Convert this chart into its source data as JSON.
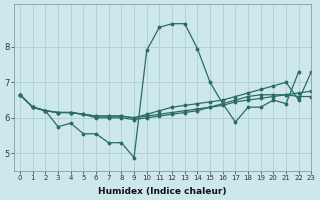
{
  "xlabel": "Humidex (Indice chaleur)",
  "ylabel": "",
  "bg_color": "#cde8ec",
  "grid_color": "#aecdd4",
  "line_color": "#2a6b68",
  "xlim": [
    -0.5,
    23
  ],
  "ylim": [
    4.5,
    9.2
  ],
  "yticks": [
    5,
    6,
    7,
    8
  ],
  "xticks": [
    0,
    1,
    2,
    3,
    4,
    5,
    6,
    7,
    8,
    9,
    10,
    11,
    12,
    13,
    14,
    15,
    16,
    17,
    18,
    19,
    20,
    21,
    22,
    23
  ],
  "series": [
    [
      6.65,
      6.3,
      6.2,
      5.75,
      5.85,
      5.55,
      5.55,
      5.3,
      5.3,
      4.88,
      7.9,
      8.55,
      8.65,
      8.65,
      7.95,
      7.0,
      6.4,
      5.88,
      6.3,
      6.3,
      6.5,
      6.4,
      7.3,
      null
    ],
    [
      6.65,
      6.3,
      6.2,
      6.15,
      6.15,
      6.1,
      6.05,
      6.05,
      6.05,
      6.0,
      6.05,
      6.1,
      6.15,
      6.2,
      6.25,
      6.3,
      6.35,
      6.45,
      6.5,
      6.55,
      6.6,
      6.65,
      6.7,
      6.75
    ],
    [
      6.65,
      6.3,
      6.2,
      6.15,
      6.15,
      6.1,
      6.05,
      6.05,
      6.05,
      6.0,
      6.1,
      6.2,
      6.3,
      6.35,
      6.4,
      6.45,
      6.5,
      6.6,
      6.7,
      6.8,
      6.9,
      7.0,
      6.5,
      7.3
    ],
    [
      6.65,
      6.3,
      6.2,
      6.15,
      6.15,
      6.1,
      6.0,
      6.0,
      6.0,
      5.95,
      6.0,
      6.05,
      6.1,
      6.15,
      6.2,
      6.3,
      6.4,
      6.5,
      6.6,
      6.65,
      6.65,
      6.65,
      6.6,
      6.6
    ]
  ],
  "series1": [
    6.65,
    6.3,
    6.2,
    5.75,
    5.85,
    5.55,
    5.55,
    5.3,
    5.3,
    4.88,
    7.9,
    8.55,
    8.65,
    8.65,
    7.95,
    7.0,
    6.4,
    5.88,
    6.3,
    6.3,
    6.5,
    6.4,
    7.3
  ],
  "series2": [
    6.65,
    6.3,
    6.2,
    6.15,
    6.15,
    6.1,
    6.05,
    6.05,
    6.05,
    6.0,
    6.05,
    6.1,
    6.15,
    6.2,
    6.25,
    6.3,
    6.35,
    6.45,
    6.5,
    6.55,
    6.6,
    6.65,
    6.7,
    6.75
  ],
  "series3": [
    6.65,
    6.3,
    6.2,
    6.15,
    6.15,
    6.1,
    6.05,
    6.05,
    6.05,
    6.0,
    6.1,
    6.2,
    6.3,
    6.35,
    6.4,
    6.45,
    6.5,
    6.6,
    6.7,
    6.8,
    6.9,
    7.0,
    6.5,
    7.3
  ],
  "series4": [
    6.65,
    6.3,
    6.2,
    6.15,
    6.15,
    6.1,
    6.0,
    6.0,
    6.0,
    5.95,
    6.0,
    6.05,
    6.1,
    6.15,
    6.2,
    6.3,
    6.4,
    6.5,
    6.6,
    6.65,
    6.65,
    6.65,
    6.6,
    6.6
  ]
}
